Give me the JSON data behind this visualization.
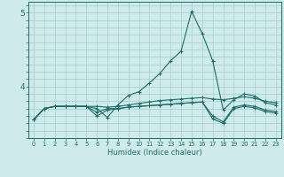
{
  "xlabel": "Humidex (Indice chaleur)",
  "x_ticks": [
    0,
    1,
    2,
    3,
    4,
    5,
    6,
    7,
    8,
    9,
    10,
    11,
    12,
    13,
    14,
    15,
    16,
    17,
    18,
    19,
    20,
    21,
    22,
    23
  ],
  "xlim": [
    -0.5,
    23.5
  ],
  "ylim": [
    3.3,
    5.15
  ],
  "y_ticks": [
    4,
    5
  ],
  "background_color": "#ceeaea",
  "grid_color": "#aacccc",
  "line_color": "#1a6e6a",
  "lines": [
    [
      3.55,
      3.7,
      3.73,
      3.73,
      3.73,
      3.73,
      3.7,
      3.58,
      3.75,
      3.88,
      3.93,
      4.05,
      4.18,
      4.35,
      4.48,
      5.02,
      4.72,
      4.35,
      3.68,
      3.82,
      3.9,
      3.87,
      3.78,
      3.75
    ],
    [
      3.55,
      3.7,
      3.73,
      3.73,
      3.73,
      3.73,
      3.73,
      3.72,
      3.73,
      3.75,
      3.77,
      3.79,
      3.81,
      3.82,
      3.83,
      3.84,
      3.85,
      3.83,
      3.82,
      3.84,
      3.86,
      3.84,
      3.8,
      3.78
    ],
    [
      3.55,
      3.7,
      3.73,
      3.73,
      3.73,
      3.73,
      3.6,
      3.68,
      3.7,
      3.72,
      3.73,
      3.74,
      3.75,
      3.76,
      3.77,
      3.78,
      3.79,
      3.6,
      3.52,
      3.72,
      3.75,
      3.73,
      3.68,
      3.66
    ],
    [
      3.55,
      3.7,
      3.73,
      3.73,
      3.73,
      3.73,
      3.65,
      3.7,
      3.7,
      3.72,
      3.73,
      3.74,
      3.75,
      3.76,
      3.77,
      3.78,
      3.79,
      3.56,
      3.5,
      3.7,
      3.73,
      3.71,
      3.66,
      3.64
    ]
  ]
}
